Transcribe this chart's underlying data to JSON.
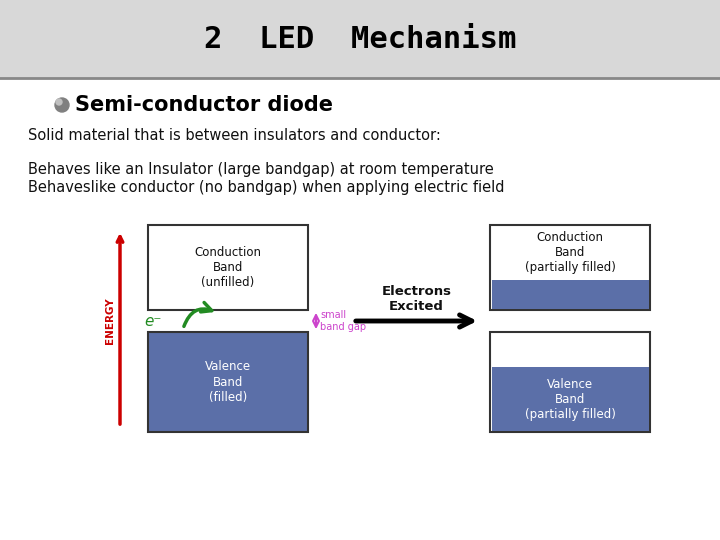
{
  "title": "2  LED  Mechanism",
  "subtitle": "Semi-conductor diode",
  "text1": "Solid material that is between insulators and conductor:",
  "text2": "Behaves like an Insulator (large bandgap) at room temperature",
  "text3": "Behaveslike conductor (no bandgap) when applying electric field",
  "bg_color": "#ffffff",
  "header_bg": "#d8d8d8",
  "band_blue": "#5b6fa8",
  "title_color": "#000000",
  "subtitle_color": "#000000",
  "energy_color": "#cc0000",
  "arrow_color": "#228B22",
  "small_gap_color": "#cc44cc",
  "electrons_text": "Electrons\nExcited",
  "left_conduction_label": "Conduction\nBand\n(unfilled)",
  "left_valence_label": "Valence\nBand\n(filled)",
  "right_conduction_label": "Conduction\nBand\n(partially filled)",
  "right_valence_label": "Valence\nBand\n(partially filled)",
  "small_gap_label": "small\nband gap",
  "e_minus_label": "e⁻",
  "header_line_color": "#888888",
  "fig_width": 7.2,
  "fig_height": 5.4,
  "dpi": 100
}
